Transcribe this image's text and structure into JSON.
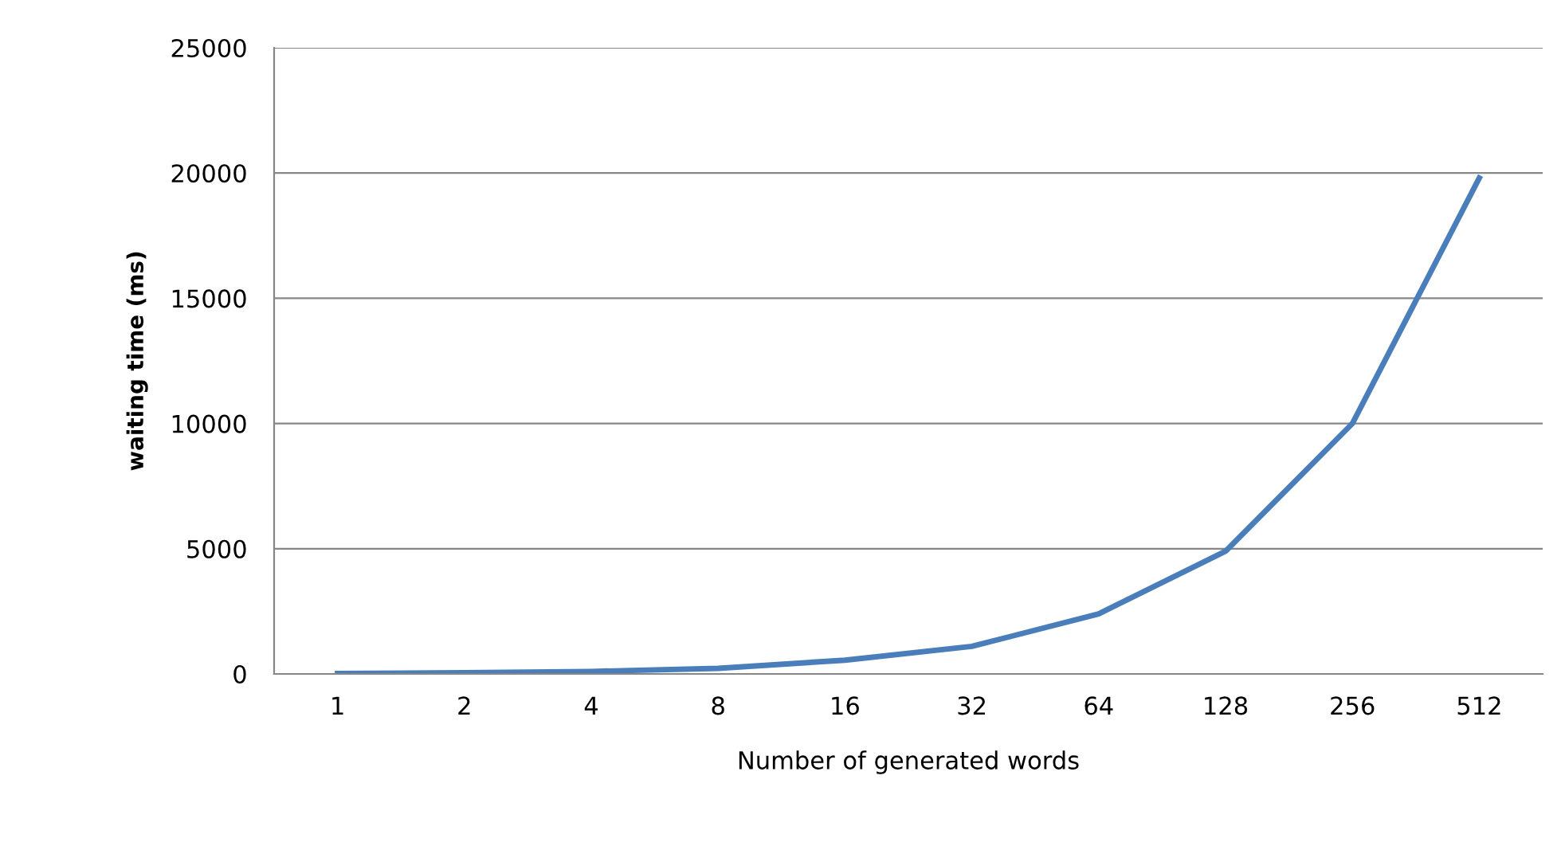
{
  "chart_data": {
    "type": "line",
    "xlabel": "Number of generated words",
    "ylabel": "waiting time (ms)",
    "categories": [
      "1",
      "2",
      "4",
      "8",
      "16",
      "32",
      "64",
      "128",
      "256",
      "512"
    ],
    "series": [
      {
        "color": "#4a7ebb",
        "values": [
          20,
          50,
          100,
          220,
          550,
          1100,
          2400,
          4900,
          10000,
          19800
        ]
      }
    ],
    "ylim": [
      0,
      25000
    ],
    "yticks": [
      0,
      5000,
      10000,
      15000,
      20000,
      25000
    ],
    "grid": "y",
    "marker": "none",
    "line_style": "solid"
  }
}
